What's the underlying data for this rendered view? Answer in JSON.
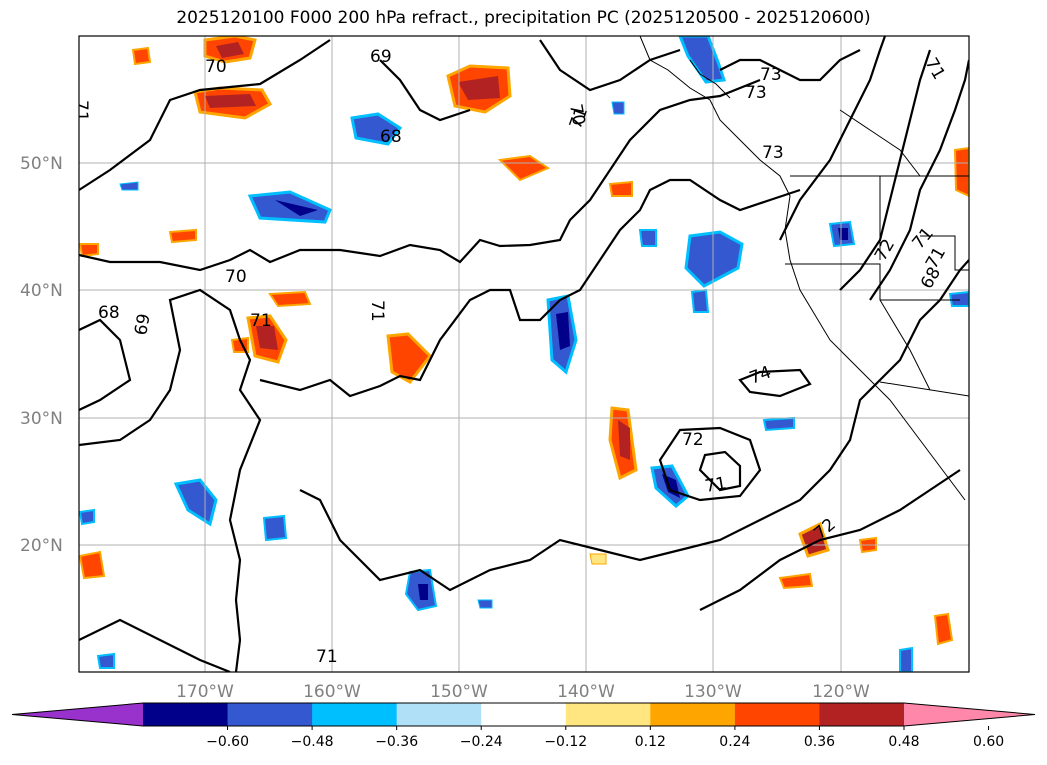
{
  "title": "2025120100 F000 200 hPa refract., precipitation PC (2025120500 - 2025120600)",
  "lat_labels": [
    "50°N",
    "40°N",
    "30°N",
    "20°N"
  ],
  "lon_labels": [
    "170°W",
    "160°W",
    "150°W",
    "140°W",
    "130°W",
    "120°W"
  ],
  "contour_labels": [
    "70",
    "69",
    "71",
    "70",
    "71",
    "73",
    "73",
    "73",
    "71",
    "68",
    "69",
    "68",
    "70",
    "71",
    "71",
    "71",
    "74",
    "72",
    "71",
    "72",
    "71",
    "72",
    "68",
    "71"
  ],
  "colorbar": {
    "colors": [
      "#9932cc",
      "#00008b",
      "#3458d0",
      "#00bfff",
      "#b0e0f8",
      "#ffffff",
      "#ffe680",
      "#ffa500",
      "#ff4500",
      "#b22222",
      "#ff88aa"
    ],
    "tick_labels": [
      "−0.60",
      "−0.48",
      "−0.36",
      "−0.24",
      "−0.12",
      "0.12",
      "0.24",
      "0.36",
      "0.48",
      "0.60"
    ]
  }
}
